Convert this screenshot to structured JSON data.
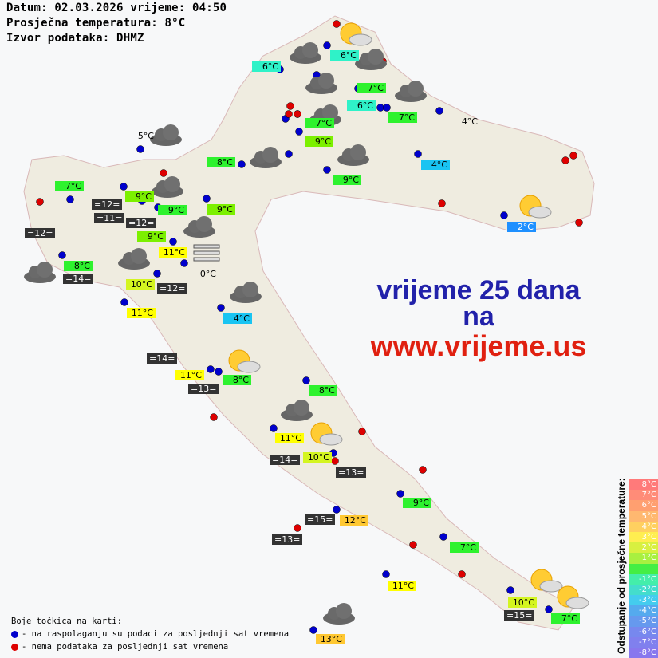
{
  "header": {
    "line1": "Datum: 02.03.2026 vrijeme: 04:50",
    "line2": "Prosječna temperatura: 8°C",
    "line3": "Izvor podataka: DHMZ"
  },
  "labels": [
    "6°C",
    "6°C",
    "7°C",
    "6°C",
    "7°C",
    "7°C",
    "9°C",
    "8°C",
    "9°C",
    "4°C",
    "7°C",
    "9°C",
    "=12=",
    "=11=",
    "9°C",
    "=12=",
    "9°C",
    "9°C",
    "2°C",
    "=12=",
    "11°C",
    "8°C",
    "=14=",
    "0°C",
    "10°C",
    "=12=",
    "11°C",
    "4°C",
    "=14=",
    "11°C",
    "=13=",
    "8°C",
    "8°C",
    "11°C",
    "=14=",
    "10°C",
    "=13=",
    "9°C",
    "=15=",
    "12°C",
    "=13=",
    "7°C",
    "11°C",
    "10°C",
    "=15=",
    "7°C",
    "13°C",
    "5°C",
    "4°C"
  ],
  "promo": {
    "line1": "vrijeme 25 dana",
    "line2": "na",
    "line3": "www.vrijeme.us"
  },
  "legend": {
    "title": "Boje točkica na karti:",
    "blue": "- na raspolaganju su podaci za posljednji sat vremena",
    "red": "- nema podataka za posljednji sat vremena",
    "blue_color": "#0000cc",
    "red_color": "#dd0000"
  },
  "scale": {
    "title": "Odstupanje od prosječne temperature:",
    "steps": [
      "8°C",
      "7°C",
      "6°C",
      "5°C",
      "4°C",
      "3°C",
      "2°C",
      "1°C",
      "",
      "-1°C",
      "-2°C",
      "-3°C",
      "-4°C",
      "-5°C",
      "-6°C",
      "-7°C",
      "-8°C"
    ],
    "colors": [
      "#ff7a7a",
      "#ff8c78",
      "#ff9f70",
      "#ffb870",
      "#ffd060",
      "#ffee50",
      "#d8f040",
      "#a8f040",
      "#44ee44",
      "#44eeaa",
      "#44ddcc",
      "#44ccee",
      "#55aaee",
      "#6699ee",
      "#7788ee",
      "#8080ee",
      "#8877ee"
    ]
  }
}
